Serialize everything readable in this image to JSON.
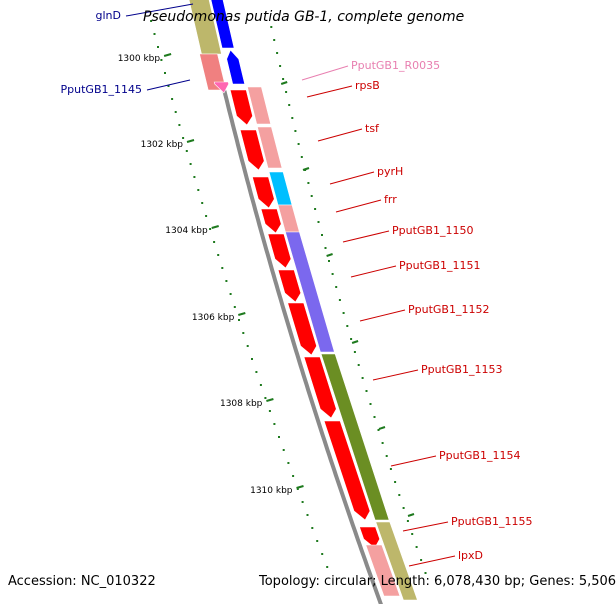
{
  "title": "Pseudomonas putida GB-1, complete genome",
  "footer": {
    "accession": "Accession: NC_010322",
    "topology": "Topology: circular; Length: 6,078,430 bp; Genes: 5,506"
  },
  "colors": {
    "background": "#ffffff",
    "backbone": "#8a8a8a",
    "tick": "#1e7a1e",
    "forward_gene_label": "#cc0000",
    "reverse_gene_label": "#00008b",
    "rna_label": "#e87fb0",
    "cds_forward": "#ff0000",
    "cds_forward_light": "#f08080",
    "operon_salmon": "#f4a0a0",
    "operon_cyan": "#00bfff",
    "operon_purple": "#7b68ee",
    "operon_olive": "#6b8e23",
    "olive_light": "#bdb76b",
    "reverse_blue": "#0000ff"
  },
  "kbp_labels": [
    "1300 kbp",
    "1302 kbp",
    "1304 kbp",
    "1306 kbp",
    "1308 kbp",
    "1310 kbp"
  ],
  "genes": [
    {
      "label": "glnD",
      "strand": "reverse",
      "type": "CDS"
    },
    {
      "label": "PputGB1_1145",
      "strand": "reverse",
      "type": "CDS"
    },
    {
      "label": "PputGB1_R0035",
      "strand": "forward",
      "type": "RNA"
    },
    {
      "label": "rpsB",
      "strand": "forward",
      "type": "CDS"
    },
    {
      "label": "tsf",
      "strand": "forward",
      "type": "CDS"
    },
    {
      "label": "pyrH",
      "strand": "forward",
      "type": "CDS"
    },
    {
      "label": "frr",
      "strand": "forward",
      "type": "CDS"
    },
    {
      "label": "PputGB1_1150",
      "strand": "forward",
      "type": "CDS"
    },
    {
      "label": "PputGB1_1151",
      "strand": "forward",
      "type": "CDS"
    },
    {
      "label": "PputGB1_1152",
      "strand": "forward",
      "type": "CDS"
    },
    {
      "label": "PputGB1_1153",
      "strand": "forward",
      "type": "CDS"
    },
    {
      "label": "PputGB1_1154",
      "strand": "forward",
      "type": "CDS"
    },
    {
      "label": "PputGB1_1155",
      "strand": "forward",
      "type": "CDS"
    },
    {
      "label": "lpxD",
      "strand": "forward",
      "type": "CDS"
    }
  ]
}
